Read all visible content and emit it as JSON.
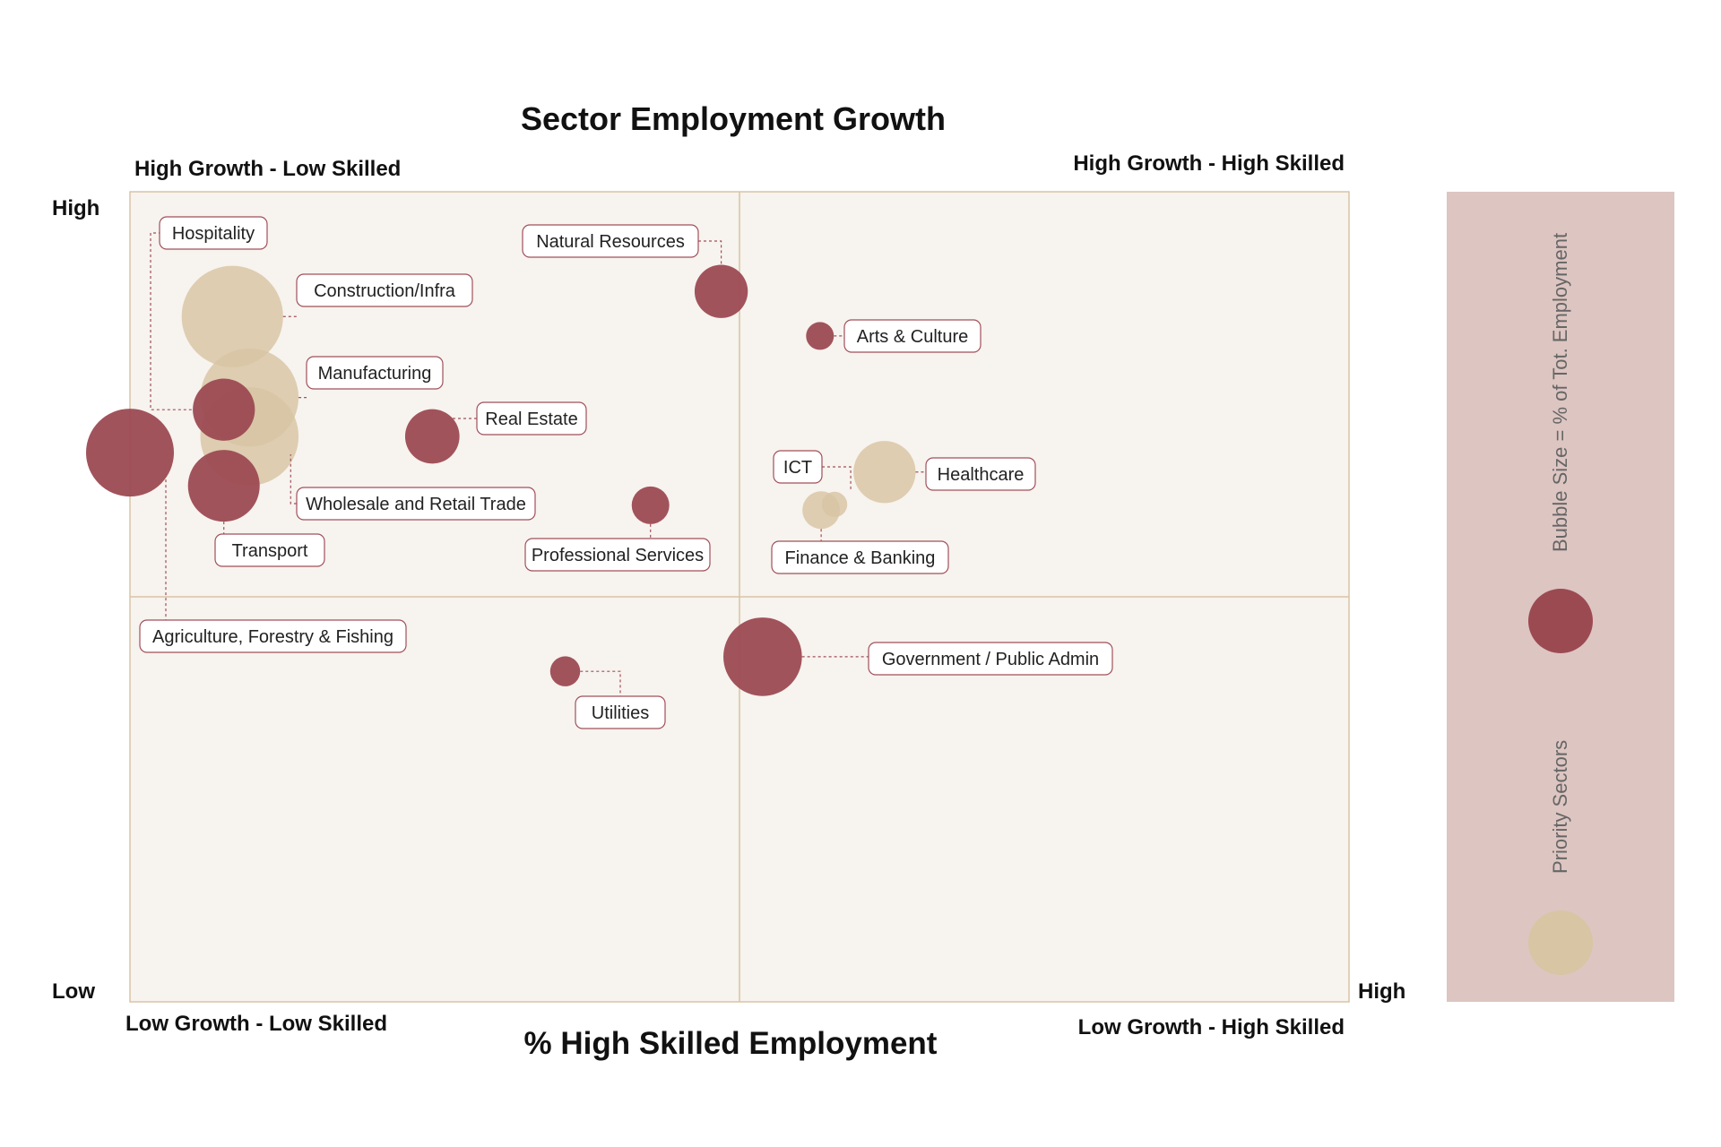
{
  "colors": {
    "plot_bg": "#f7f3ee",
    "plot_border": "#d9c4a6",
    "other": "#9c4a52",
    "priority": "#d8c5a3",
    "legend_bg": "#ddc5c1",
    "leader": "#a0505a",
    "label_border": "#a0505a"
  },
  "chart_data": {
    "type": "scatter",
    "title": "Sector Employment Growth",
    "xlabel": "% High Skilled Employment",
    "ylabel": "",
    "x_low": "Low",
    "x_high": "High",
    "y_low": "Low",
    "y_high": "High",
    "xlim": [
      0,
      100
    ],
    "ylim": [
      0,
      100
    ],
    "quadrants": {
      "top_left": "High Growth - Low Skilled",
      "top_right": "High Growth - High Skilled",
      "bottom_left": "Low Growth - Low Skilled",
      "bottom_right": "Low Growth - High Skilled"
    },
    "legend": {
      "size_note": "Bubble Size = % of Tot. Employment",
      "priority": "Priority Sectors"
    },
    "points": [
      {
        "name": "Hospitality",
        "x": 7.7,
        "y": 73.1,
        "size": 3.0,
        "priority": false
      },
      {
        "name": "Construction/Infra",
        "x": 8.4,
        "y": 84.6,
        "size": 8.0,
        "priority": true
      },
      {
        "name": "Manufacturing",
        "x": 9.8,
        "y": 74.6,
        "size": 7.5,
        "priority": true
      },
      {
        "name": "Wholesale and Retail Trade",
        "x": 9.8,
        "y": 69.8,
        "size": 7.5,
        "priority": true
      },
      {
        "name": "Transport",
        "x": 7.7,
        "y": 63.7,
        "size": 4.0,
        "priority": false
      },
      {
        "name": "Agriculture, Forestry & Fishing",
        "x": 0.0,
        "y": 67.8,
        "size": 6.0,
        "priority": false
      },
      {
        "name": "Real Estate",
        "x": 24.8,
        "y": 69.8,
        "size": 2.3,
        "priority": false
      },
      {
        "name": "Professional Services",
        "x": 42.7,
        "y": 61.3,
        "size": 1.1,
        "priority": false
      },
      {
        "name": "Natural Resources",
        "x": 48.5,
        "y": 87.7,
        "size": 2.2,
        "priority": false
      },
      {
        "name": "Arts & Culture",
        "x": 56.6,
        "y": 82.2,
        "size": 0.6,
        "priority": false
      },
      {
        "name": "Healthcare",
        "x": 61.9,
        "y": 65.4,
        "size": 3.0,
        "priority": true
      },
      {
        "name": "ICT",
        "x": 57.8,
        "y": 61.4,
        "size": 0.5,
        "priority": true
      },
      {
        "name": "Finance & Banking",
        "x": 56.7,
        "y": 60.7,
        "size": 1.1,
        "priority": true
      },
      {
        "name": "Government / Public Admin",
        "x": 51.9,
        "y": 42.6,
        "size": 4.8,
        "priority": false
      },
      {
        "name": "Utilities",
        "x": 35.7,
        "y": 40.8,
        "size": 0.7,
        "priority": false
      }
    ]
  }
}
